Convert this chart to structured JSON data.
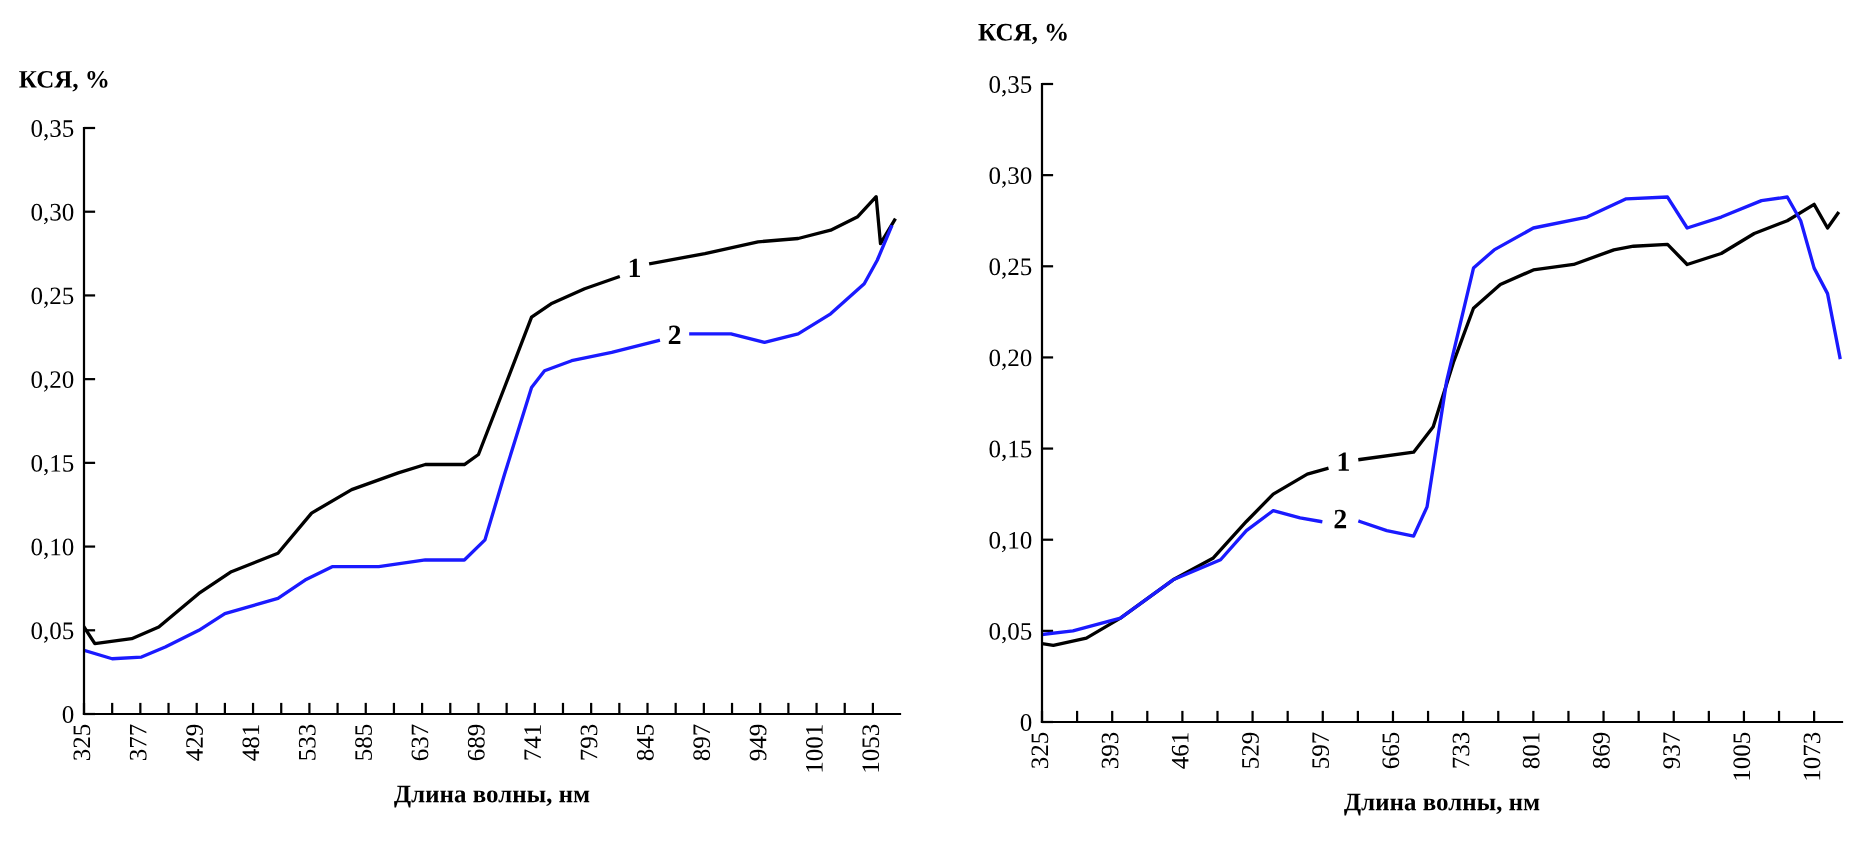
{
  "chart_data": [
    {
      "type": "line",
      "xlabel": "Длина волны, нм",
      "ylabel": "КСЯ, %",
      "xlim": [
        325,
        1078
      ],
      "ylim": [
        0,
        0.35
      ],
      "xticks": [
        325,
        {
          "value": 351,
          "label": null
        },
        377,
        {
          "value": 403,
          "label": null
        },
        429,
        {
          "value": 455,
          "label": null
        },
        481,
        {
          "value": 507,
          "label": null
        },
        533,
        {
          "value": 559,
          "label": null
        },
        585,
        {
          "value": 611,
          "label": null
        },
        637,
        {
          "value": 663,
          "label": null
        },
        689,
        {
          "value": 715,
          "label": null
        },
        741,
        {
          "value": 767,
          "label": null
        },
        793,
        {
          "value": 819,
          "label": null
        },
        845,
        {
          "value": 871,
          "label": null
        },
        897,
        {
          "value": 923,
          "label": null
        },
        949,
        {
          "value": 975,
          "label": null
        },
        1001,
        {
          "value": 1027,
          "label": null
        },
        1053
      ],
      "yticks": [
        {
          "value": 0,
          "label": "0"
        },
        {
          "value": 0.05,
          "label": "0,05"
        },
        {
          "value": 0.1,
          "label": "0,10"
        },
        {
          "value": 0.15,
          "label": "0,15"
        },
        {
          "value": 0.2,
          "label": "0,20"
        },
        {
          "value": 0.25,
          "label": "0,25"
        },
        {
          "value": 0.3,
          "label": "0,30"
        },
        {
          "value": 0.35,
          "label": "0,35"
        }
      ],
      "grid": false,
      "legend": false,
      "marker": "none",
      "line_style": "solid",
      "series": [
        {
          "name": "1",
          "color": "#000000",
          "x": [
            325,
            335,
            369,
            394,
            431,
            461,
            504,
            535,
            572,
            615,
            640,
            676,
            689,
            713,
            738,
            756,
            787,
            818,
            833,
            848,
            898,
            947,
            984,
            1014,
            1039,
            1056,
            1060,
            1073
          ],
          "values": [
            0.052,
            0.042,
            0.045,
            0.052,
            0.072,
            0.085,
            0.096,
            0.12,
            0.134,
            0.144,
            0.149,
            0.149,
            0.155,
            0.195,
            0.237,
            0.245,
            0.254,
            0.261,
            null,
            0.269,
            0.275,
            0.282,
            0.284,
            0.289,
            0.297,
            0.309,
            0.281,
            0.295
          ]
        },
        {
          "name": "2",
          "color": "#1a1aff",
          "x": [
            325,
            351,
            378,
            400,
            431,
            455,
            504,
            529,
            554,
            597,
            640,
            676,
            695,
            713,
            738,
            750,
            775,
            812,
            855,
            872,
            885,
            922,
            953,
            984,
            1014,
            1045,
            1057,
            1070
          ],
          "values": [
            0.038,
            0.033,
            0.034,
            0.04,
            0.05,
            0.06,
            0.069,
            0.08,
            0.088,
            0.088,
            0.092,
            0.092,
            0.104,
            0.143,
            0.195,
            0.205,
            0.211,
            0.216,
            0.223,
            null,
            0.227,
            0.227,
            0.222,
            0.227,
            0.239,
            0.257,
            0.271,
            0.291
          ]
        }
      ]
    },
    {
      "type": "line",
      "xlabel": "Длина волны, нм",
      "ylabel": "КСЯ, %",
      "xlim": [
        325,
        1100
      ],
      "ylim": [
        0,
        0.35
      ],
      "xticks": [
        325,
        {
          "value": 359,
          "label": null
        },
        393,
        {
          "value": 427,
          "label": null
        },
        461,
        {
          "value": 495,
          "label": null
        },
        529,
        {
          "value": 563,
          "label": null
        },
        597,
        {
          "value": 631,
          "label": null
        },
        665,
        {
          "value": 699,
          "label": null
        },
        733,
        {
          "value": 767,
          "label": null
        },
        801,
        {
          "value": 835,
          "label": null
        },
        869,
        {
          "value": 903,
          "label": null
        },
        937,
        {
          "value": 971,
          "label": null
        },
        1005,
        {
          "value": 1039,
          "label": null
        },
        1073
      ],
      "yticks": [
        {
          "value": 0,
          "label": "0"
        },
        {
          "value": 0.05,
          "label": "0,05"
        },
        {
          "value": 0.1,
          "label": "0,10"
        },
        {
          "value": 0.15,
          "label": "0,15"
        },
        {
          "value": 0.2,
          "label": "0,20"
        },
        {
          "value": 0.25,
          "label": "0,25"
        },
        {
          "value": 0.3,
          "label": "0,30"
        },
        {
          "value": 0.35,
          "label": "0,35"
        }
      ],
      "grid": false,
      "legend": false,
      "marker": "none",
      "line_style": "solid",
      "series": [
        {
          "name": "1",
          "color": "#000000",
          "x": [
            325,
            336,
            368,
            401,
            452,
            491,
            523,
            549,
            582,
            601,
            613,
            633,
            685,
            704,
            724,
            743,
            769,
            801,
            840,
            879,
            898,
            931,
            950,
            983,
            1015,
            1047,
            1073,
            1086,
            1096
          ],
          "values": [
            0.043,
            0.042,
            0.046,
            0.057,
            0.078,
            0.09,
            0.11,
            0.125,
            0.136,
            0.139,
            null,
            0.144,
            0.148,
            0.162,
            0.198,
            0.227,
            0.24,
            0.248,
            0.251,
            0.259,
            0.261,
            0.262,
            0.251,
            0.257,
            0.268,
            0.275,
            0.284,
            0.271,
            0.279
          ]
        },
        {
          "name": "2",
          "color": "#1a1aff",
          "x": [
            325,
            355,
            401,
            452,
            498,
            523,
            549,
            575,
            595,
            615,
            633,
            659,
            685,
            698,
            717,
            743,
            763,
            801,
            853,
            891,
            931,
            950,
            983,
            1022,
            1047,
            1060,
            1073,
            1086,
            1098
          ],
          "values": [
            0.048,
            0.05,
            0.057,
            0.078,
            0.089,
            0.105,
            0.116,
            0.112,
            0.11,
            null,
            0.11,
            0.105,
            0.102,
            0.118,
            0.187,
            0.249,
            0.259,
            0.271,
            0.277,
            0.287,
            0.288,
            0.271,
            0.277,
            0.286,
            0.288,
            0.275,
            0.249,
            0.235,
            0.2
          ]
        }
      ]
    }
  ]
}
